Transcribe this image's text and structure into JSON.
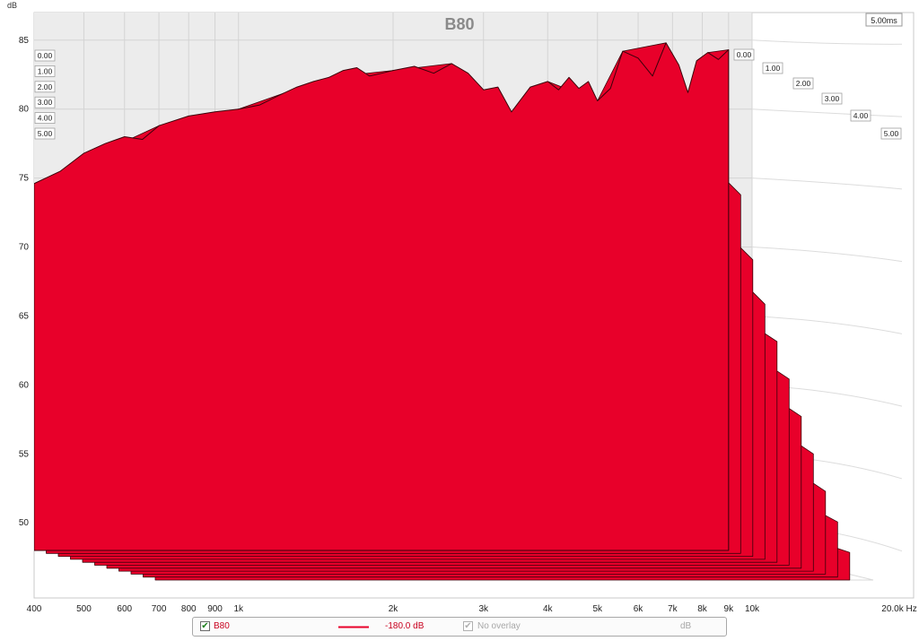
{
  "chart_data": {
    "type": "waterfall",
    "title": "B80",
    "ylabel": "dB",
    "xunit": "Hz",
    "x_ticks": [
      400,
      500,
      600,
      700,
      800,
      900,
      1000,
      2000,
      3000,
      4000,
      5000,
      6000,
      7000,
      8000,
      9000,
      10000,
      20000
    ],
    "x_tick_labels": [
      "400",
      "500",
      "600",
      "700",
      "800",
      "900",
      "1k",
      "2k",
      "3k",
      "4k",
      "5k",
      "6k",
      "7k",
      "8k",
      "9k",
      "10k",
      "20.0k Hz"
    ],
    "xlim": [
      400,
      20000
    ],
    "ylim": [
      48,
      87
    ],
    "y_ticks": [
      50,
      55,
      60,
      65,
      70,
      75,
      80,
      85
    ],
    "time_unit_label": "5.00ms",
    "time_ticks": [
      "0.00",
      "1.00",
      "2.00",
      "3.00",
      "4.00",
      "5.00"
    ],
    "series_color": "#e8002a",
    "front_slice": {
      "time_ms": 0.0,
      "points": [
        [
          400,
          74.6
        ],
        [
          450,
          75.5
        ],
        [
          500,
          76.8
        ],
        [
          550,
          77.5
        ],
        [
          600,
          78.0
        ],
        [
          650,
          77.8
        ],
        [
          700,
          78.8
        ],
        [
          800,
          79.5
        ],
        [
          900,
          79.8
        ],
        [
          1000,
          80.0
        ],
        [
          1100,
          80.3
        ],
        [
          1200,
          81.0
        ],
        [
          1300,
          81.6
        ],
        [
          1400,
          82.0
        ],
        [
          1500,
          82.3
        ],
        [
          1600,
          82.8
        ],
        [
          1700,
          83.0
        ],
        [
          1800,
          82.4
        ],
        [
          1900,
          82.6
        ],
        [
          2000,
          82.8
        ],
        [
          2200,
          83.1
        ],
        [
          2400,
          82.6
        ],
        [
          2600,
          83.3
        ],
        [
          2800,
          82.6
        ],
        [
          3000,
          81.4
        ],
        [
          3200,
          81.6
        ],
        [
          3400,
          79.8
        ],
        [
          3700,
          81.6
        ],
        [
          4000,
          82.0
        ],
        [
          4200,
          81.4
        ],
        [
          4400,
          82.3
        ],
        [
          4600,
          81.5
        ],
        [
          4800,
          82.0
        ],
        [
          5000,
          80.6
        ],
        [
          5300,
          81.5
        ],
        [
          5600,
          84.2
        ],
        [
          6000,
          83.7
        ],
        [
          6400,
          82.4
        ],
        [
          6800,
          84.8
        ],
        [
          7200,
          83.2
        ],
        [
          7500,
          81.2
        ],
        [
          7800,
          83.5
        ],
        [
          8200,
          84.1
        ],
        [
          8600,
          83.6
        ],
        [
          9000,
          84.3
        ]
      ]
    },
    "slices": [
      {
        "time_ms": 0.0,
        "points": [
          [
            400,
            74.6
          ],
          [
            700,
            78.8
          ],
          [
            1000,
            80.0
          ],
          [
            1500,
            82.3
          ],
          [
            2000,
            82.8
          ],
          [
            2600,
            83.3
          ],
          [
            3000,
            81.4
          ],
          [
            3400,
            79.8
          ],
          [
            4000,
            82.0
          ],
          [
            5000,
            80.6
          ],
          [
            5600,
            84.2
          ],
          [
            6800,
            84.8
          ],
          [
            7500,
            81.2
          ],
          [
            8200,
            84.1
          ],
          [
            9000,
            84.3
          ]
        ]
      },
      {
        "time_ms": 0.5,
        "points": [
          [
            400,
            70.5
          ],
          [
            700,
            77.5
          ],
          [
            1000,
            75.5
          ],
          [
            1500,
            76.3
          ],
          [
            2000,
            75.8
          ],
          [
            2600,
            74.5
          ],
          [
            3000,
            72.5
          ],
          [
            3400,
            74.3
          ],
          [
            4000,
            71.0
          ],
          [
            5000,
            76.0
          ],
          [
            5600,
            74.4
          ],
          [
            6800,
            75.6
          ],
          [
            7500,
            72.0
          ],
          [
            8200,
            75.5
          ],
          [
            9000,
            74.0
          ]
        ]
      },
      {
        "time_ms": 1.0,
        "points": [
          [
            400,
            69.5
          ],
          [
            700,
            72.5
          ],
          [
            1000,
            69.8
          ],
          [
            1500,
            73.0
          ],
          [
            2000,
            71.8
          ],
          [
            2600,
            72.8
          ],
          [
            3000,
            70.5
          ],
          [
            3400,
            72.0
          ],
          [
            4000,
            70.2
          ],
          [
            5000,
            72.0
          ],
          [
            5600,
            71.0
          ],
          [
            6800,
            71.2
          ],
          [
            7500,
            69.0
          ],
          [
            8200,
            71.0
          ],
          [
            9000,
            69.5
          ]
        ]
      },
      {
        "time_ms": 1.5,
        "points": [
          [
            400,
            67.4
          ],
          [
            700,
            70.5
          ],
          [
            1000,
            66.8
          ],
          [
            1500,
            70.6
          ],
          [
            2000,
            68.2
          ],
          [
            2600,
            70.0
          ],
          [
            3000,
            67.5
          ],
          [
            3400,
            69.0
          ],
          [
            4000,
            67.5
          ],
          [
            5000,
            70.0
          ],
          [
            5600,
            68.0
          ],
          [
            6800,
            69.0
          ],
          [
            7500,
            66.0
          ],
          [
            8200,
            68.0
          ],
          [
            9000,
            66.5
          ]
        ]
      },
      {
        "time_ms": 2.0,
        "points": [
          [
            400,
            66.5
          ],
          [
            700,
            67.5
          ],
          [
            1000,
            65.2
          ],
          [
            1500,
            67.2
          ],
          [
            2000,
            66.5
          ],
          [
            2600,
            68.0
          ],
          [
            3000,
            64.5
          ],
          [
            3400,
            66.8
          ],
          [
            4000,
            65.0
          ],
          [
            5000,
            67.5
          ],
          [
            5600,
            65.5
          ],
          [
            6800,
            66.5
          ],
          [
            7500,
            63.5
          ],
          [
            8200,
            65.0
          ],
          [
            9000,
            64.0
          ]
        ]
      },
      {
        "time_ms": 2.5,
        "points": [
          [
            400,
            65.0
          ],
          [
            700,
            64.8
          ],
          [
            1000,
            63.0
          ],
          [
            1500,
            65.5
          ],
          [
            2000,
            64.0
          ],
          [
            2600,
            65.5
          ],
          [
            3000,
            62.5
          ],
          [
            3400,
            64.0
          ],
          [
            4000,
            62.8
          ],
          [
            5000,
            64.5
          ],
          [
            5600,
            62.5
          ],
          [
            6800,
            63.5
          ],
          [
            7500,
            61.5
          ],
          [
            8200,
            62.5
          ],
          [
            9000,
            61.5
          ]
        ]
      },
      {
        "time_ms": 3.0,
        "points": [
          [
            400,
            62.0
          ],
          [
            700,
            62.5
          ],
          [
            1000,
            60.8
          ],
          [
            1500,
            62.8
          ],
          [
            2000,
            61.5
          ],
          [
            2600,
            63.0
          ],
          [
            3000,
            60.5
          ],
          [
            3400,
            61.8
          ],
          [
            4000,
            60.0
          ],
          [
            5000,
            61.5
          ],
          [
            5600,
            60.0
          ],
          [
            6800,
            60.5
          ],
          [
            7500,
            59.0
          ],
          [
            8200,
            60.0
          ],
          [
            9000,
            59.0
          ]
        ]
      },
      {
        "time_ms": 3.5,
        "points": [
          [
            400,
            60.0
          ],
          [
            700,
            60.5
          ],
          [
            1000,
            59.0
          ],
          [
            1500,
            60.5
          ],
          [
            2000,
            59.5
          ],
          [
            2600,
            60.0
          ],
          [
            3000,
            58.0
          ],
          [
            3400,
            59.5
          ],
          [
            4000,
            57.8
          ],
          [
            5000,
            59.0
          ],
          [
            5600,
            57.5
          ],
          [
            6800,
            58.0
          ],
          [
            7500,
            56.5
          ],
          [
            8200,
            57.5
          ],
          [
            9000,
            56.5
          ]
        ]
      },
      {
        "time_ms": 4.0,
        "points": [
          [
            400,
            58.0
          ],
          [
            700,
            58.5
          ],
          [
            1000,
            57.0
          ],
          [
            1500,
            58.0
          ],
          [
            2000,
            57.0
          ],
          [
            2600,
            57.5
          ],
          [
            3000,
            56.0
          ],
          [
            3400,
            57.0
          ],
          [
            4000,
            55.5
          ],
          [
            5000,
            56.5
          ],
          [
            5600,
            55.0
          ],
          [
            6800,
            55.5
          ],
          [
            7500,
            54.5
          ],
          [
            8200,
            55.0
          ],
          [
            9000,
            54.0
          ]
        ]
      },
      {
        "time_ms": 4.5,
        "points": [
          [
            400,
            56.0
          ],
          [
            700,
            56.0
          ],
          [
            1000,
            55.0
          ],
          [
            1500,
            55.5
          ],
          [
            2000,
            55.0
          ],
          [
            2600,
            55.0
          ],
          [
            3000,
            54.0
          ],
          [
            3400,
            54.5
          ],
          [
            4000,
            53.5
          ],
          [
            5000,
            54.0
          ],
          [
            5600,
            53.0
          ],
          [
            6800,
            53.0
          ],
          [
            7500,
            52.5
          ],
          [
            8200,
            52.8
          ],
          [
            9000,
            52.0
          ]
        ]
      },
      {
        "time_ms": 5.0,
        "points": [
          [
            400,
            53.5
          ],
          [
            700,
            53.0
          ],
          [
            1000,
            52.5
          ],
          [
            1500,
            53.0
          ],
          [
            2000,
            52.5
          ],
          [
            2600,
            52.5
          ],
          [
            3000,
            52.0
          ],
          [
            3400,
            52.0
          ],
          [
            4000,
            51.5
          ],
          [
            5000,
            51.5
          ],
          [
            5600,
            51.0
          ],
          [
            6800,
            50.8
          ],
          [
            7500,
            50.5
          ],
          [
            8200,
            50.5
          ],
          [
            9000,
            50.0
          ]
        ]
      }
    ],
    "grid": true
  },
  "legend": {
    "series_label": "B80",
    "series_checked": true,
    "line_value": "-180.0 dB",
    "overlay_label": "No overlay",
    "overlay_checked": true,
    "unit": "dB"
  }
}
